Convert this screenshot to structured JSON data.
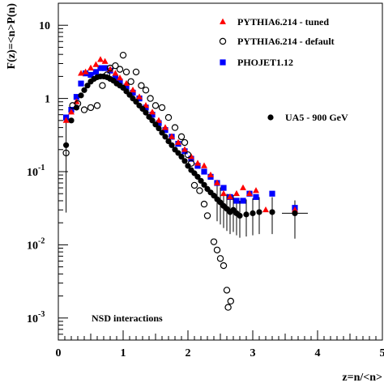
{
  "chart_data": {
    "type": "scatter",
    "xlabel": "z=n/<n>",
    "ylabel": "F(z)=<n>P(n)",
    "xlim": [
      0,
      5
    ],
    "ylim": [
      0.0005,
      20
    ],
    "yscale": "log",
    "x_ticks": [
      "0",
      "1",
      "2",
      "3",
      "4",
      "5"
    ],
    "y_tick_labels": [
      {
        "value": 10,
        "base": "10",
        "exp": ""
      },
      {
        "value": 1,
        "base": "1",
        "exp": ""
      },
      {
        "value": 0.1,
        "base": "10",
        "exp": "-1"
      },
      {
        "value": 0.01,
        "base": "10",
        "exp": "-2"
      },
      {
        "value": 0.001,
        "base": "10",
        "exp": "-3"
      }
    ],
    "annotation": "NSD interactions",
    "legend_placement": "top-right",
    "series": [
      {
        "name": "PYTHIA6.214 - tuned",
        "marker": "triangle",
        "color": "#ff0000",
        "x": [
          0.12,
          0.2,
          0.28,
          0.35,
          0.42,
          0.5,
          0.58,
          0.65,
          0.72,
          0.8,
          0.88,
          0.95,
          1.05,
          1.15,
          1.25,
          1.35,
          1.45,
          1.55,
          1.65,
          1.75,
          1.85,
          1.95,
          2.05,
          2.15,
          2.25,
          2.35,
          2.45,
          2.55,
          2.65,
          2.75,
          2.85,
          2.95,
          3.05,
          3.2,
          3.65
        ],
        "y": [
          0.5,
          0.65,
          0.9,
          2.2,
          2.3,
          2.6,
          2.9,
          3.4,
          3.2,
          2.5,
          2.2,
          1.9,
          1.6,
          1.3,
          1.05,
          0.8,
          0.65,
          0.5,
          0.4,
          0.3,
          0.25,
          0.2,
          0.16,
          0.13,
          0.12,
          0.09,
          0.07,
          0.05,
          0.045,
          0.05,
          0.06,
          0.05,
          0.055,
          0.03,
          0.03
        ]
      },
      {
        "name": "PYTHIA6.214 - default",
        "marker": "open-circle",
        "color": "#000000",
        "x": [
          0.12,
          0.22,
          0.3,
          0.4,
          0.5,
          0.6,
          0.68,
          0.75,
          0.8,
          0.88,
          0.95,
          1.0,
          1.05,
          1.12,
          1.2,
          1.28,
          1.35,
          1.42,
          1.5,
          1.6,
          1.7,
          1.8,
          1.9,
          1.95,
          2.0,
          2.05,
          2.1,
          2.18,
          2.25,
          2.3,
          2.4,
          2.45,
          2.5,
          2.55,
          2.6,
          2.62,
          2.66
        ],
        "y": [
          0.18,
          0.8,
          0.85,
          0.7,
          0.75,
          0.8,
          1.5,
          2.1,
          2.6,
          2.8,
          2.5,
          3.9,
          2.3,
          1.7,
          2.3,
          1.5,
          1.3,
          1.0,
          0.8,
          0.75,
          0.55,
          0.4,
          0.3,
          0.25,
          0.17,
          0.13,
          0.065,
          0.055,
          0.036,
          0.025,
          0.011,
          0.0085,
          0.0065,
          0.0052,
          0.0024,
          0.0014,
          0.0017
        ]
      },
      {
        "name": "PHOJET1.12",
        "marker": "square",
        "color": "#0000ff",
        "x": [
          0.12,
          0.2,
          0.28,
          0.35,
          0.42,
          0.5,
          0.58,
          0.65,
          0.72,
          0.8,
          0.88,
          0.95,
          1.05,
          1.15,
          1.25,
          1.35,
          1.45,
          1.55,
          1.65,
          1.75,
          1.85,
          1.95,
          2.05,
          2.15,
          2.25,
          2.35,
          2.45,
          2.55,
          2.65,
          2.75,
          2.85,
          2.95,
          3.05,
          3.3,
          3.65
        ],
        "y": [
          0.55,
          0.7,
          1.05,
          1.6,
          2.2,
          2.1,
          2.3,
          2.6,
          2.6,
          2.4,
          1.9,
          1.7,
          1.45,
          1.2,
          1.0,
          0.75,
          0.6,
          0.46,
          0.37,
          0.3,
          0.24,
          0.19,
          0.15,
          0.12,
          0.1,
          0.085,
          0.07,
          0.06,
          0.045,
          0.04,
          0.04,
          0.05,
          0.045,
          0.05,
          0.032
        ]
      },
      {
        "name": "UA5 - 900 GeV",
        "marker": "filled-circle",
        "color": "#000000",
        "x": [
          0.12,
          0.2,
          0.28,
          0.35,
          0.4,
          0.45,
          0.5,
          0.55,
          0.6,
          0.65,
          0.7,
          0.75,
          0.8,
          0.85,
          0.9,
          0.95,
          1.0,
          1.05,
          1.1,
          1.15,
          1.2,
          1.25,
          1.3,
          1.35,
          1.4,
          1.45,
          1.5,
          1.55,
          1.6,
          1.65,
          1.7,
          1.75,
          1.8,
          1.85,
          1.9,
          1.95,
          2.0,
          2.05,
          2.1,
          2.15,
          2.2,
          2.25,
          2.3,
          2.35,
          2.4,
          2.45,
          2.5,
          2.55,
          2.6,
          2.65,
          2.7,
          2.75,
          2.8,
          2.9,
          3.0,
          3.1,
          3.3,
          3.65
        ],
        "y": [
          0.23,
          0.5,
          0.75,
          1.1,
          1.3,
          1.5,
          1.7,
          1.85,
          1.95,
          2.0,
          2.0,
          1.95,
          1.85,
          1.75,
          1.6,
          1.5,
          1.4,
          1.25,
          1.12,
          1.0,
          0.9,
          0.8,
          0.72,
          0.64,
          0.56,
          0.5,
          0.44,
          0.39,
          0.34,
          0.3,
          0.26,
          0.23,
          0.2,
          0.18,
          0.16,
          0.14,
          0.12,
          0.105,
          0.095,
          0.085,
          0.075,
          0.066,
          0.058,
          0.052,
          0.047,
          0.042,
          0.038,
          0.034,
          0.031,
          0.028,
          0.03,
          0.027,
          0.025,
          0.026,
          0.027,
          0.028,
          0.028,
          0.027
        ]
      }
    ]
  }
}
